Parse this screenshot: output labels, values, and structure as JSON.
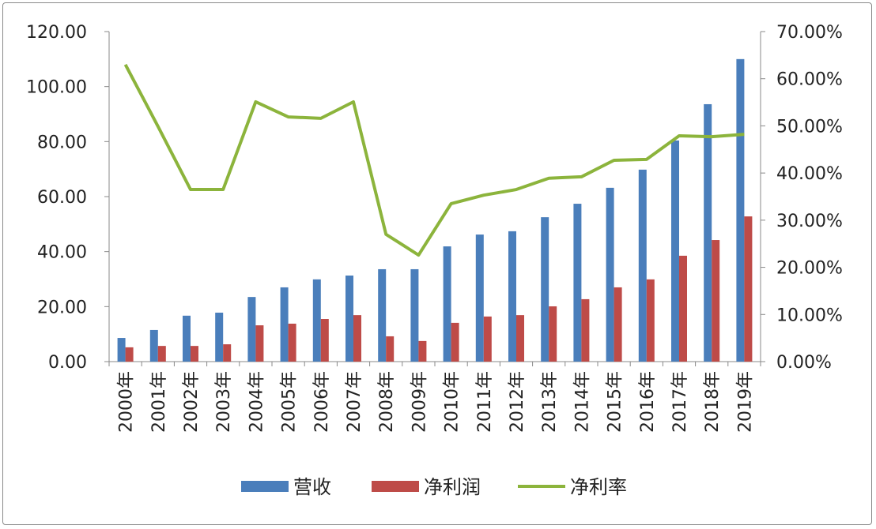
{
  "chart_data": {
    "type": "bar+line",
    "categories": [
      "2000年",
      "2001年",
      "2002年",
      "2003年",
      "2004年",
      "2005年",
      "2006年",
      "2007年",
      "2008年",
      "2009年",
      "2010年",
      "2011年",
      "2012年",
      "2013年",
      "2014年",
      "2015年",
      "2016年",
      "2017年",
      "2018年",
      "2019年"
    ],
    "series": [
      {
        "name": "营收",
        "type": "bar",
        "axis": "left",
        "color": "#4a7ebb",
        "values": [
          8.6,
          11.5,
          16.7,
          17.8,
          23.5,
          27.0,
          29.9,
          31.3,
          33.6,
          33.6,
          41.9,
          46.2,
          47.4,
          52.5,
          57.4,
          63.2,
          69.8,
          80.4,
          93.6,
          110.0
        ]
      },
      {
        "name": "净利润",
        "type": "bar",
        "axis": "left",
        "color": "#be4b48",
        "values": [
          5.2,
          5.7,
          5.7,
          6.3,
          13.2,
          13.8,
          15.5,
          16.9,
          9.2,
          7.5,
          14.1,
          16.4,
          16.9,
          20.1,
          22.7,
          27.0,
          29.9,
          38.5,
          44.2,
          52.8
        ]
      },
      {
        "name": "净利率",
        "type": "line",
        "axis": "right",
        "color": "#8cb43c",
        "values": [
          63.0,
          49.9,
          36.5,
          36.5,
          55.1,
          51.9,
          51.6,
          55.1,
          27.0,
          22.6,
          33.5,
          35.3,
          36.5,
          38.9,
          39.2,
          42.7,
          42.9,
          47.9,
          47.7,
          48.2
        ]
      }
    ],
    "left_axis": {
      "ylim": [
        0,
        120
      ],
      "ticks": [
        "0.00",
        "20.00",
        "40.00",
        "60.00",
        "80.00",
        "100.00",
        "120.00"
      ]
    },
    "right_axis": {
      "ylim": [
        0,
        70
      ],
      "ticks": [
        "0.00%",
        "10.00%",
        "20.00%",
        "30.00%",
        "40.00%",
        "50.00%",
        "60.00%",
        "70.00%"
      ]
    },
    "grid": false,
    "legend": "bottom"
  }
}
